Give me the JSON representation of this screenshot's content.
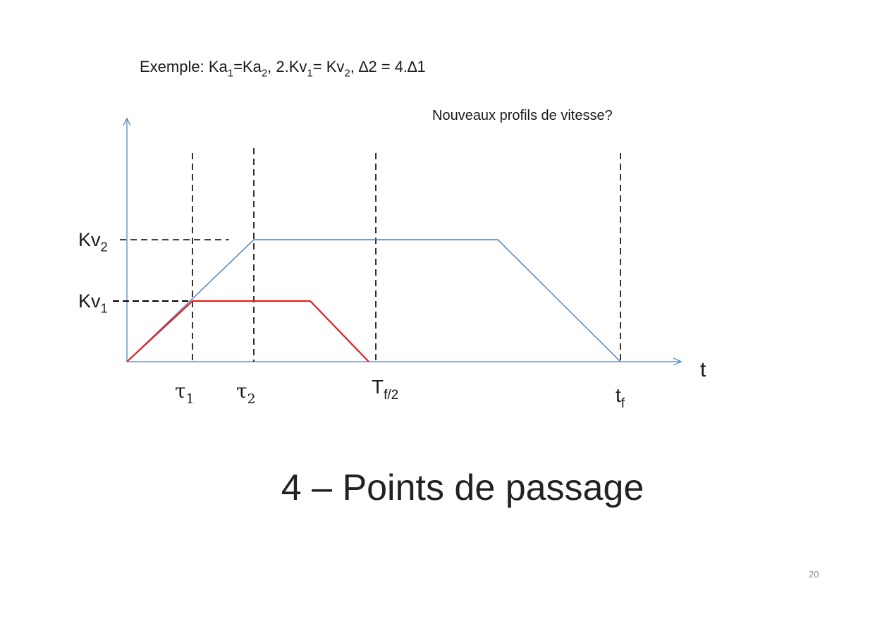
{
  "header": {
    "example_prefix": "Exemple: Ka",
    "example_sub1": "1",
    "example_mid1": "=Ka",
    "example_sub2": "2",
    "example_mid2": ", 2.Kv",
    "example_sub3": "1",
    "example_mid3": "= Kv",
    "example_sub4": "2",
    "example_suffix": ", ∆2 = 4.∆1",
    "question": "Nouveaux profils de vitesse?"
  },
  "diagram": {
    "y_labels": [
      {
        "base": "Kv",
        "sub": "2"
      },
      {
        "base": "Kv",
        "sub": "1"
      }
    ],
    "x_labels": {
      "tau1": {
        "base": "τ",
        "sub": "1"
      },
      "tau2": {
        "base": "τ",
        "sub": "2"
      },
      "tf2": {
        "base": "T",
        "sub": "f/2"
      },
      "tf": {
        "base": "t",
        "sub": "f"
      }
    },
    "axis_label": "t",
    "colors": {
      "axis": "#4a7ebb",
      "profile1": "#e02020",
      "profile2": "#4a7ebb",
      "guides": "#000000"
    }
  },
  "footer": {
    "title": "4 – Points de passage",
    "page_number": "20"
  }
}
